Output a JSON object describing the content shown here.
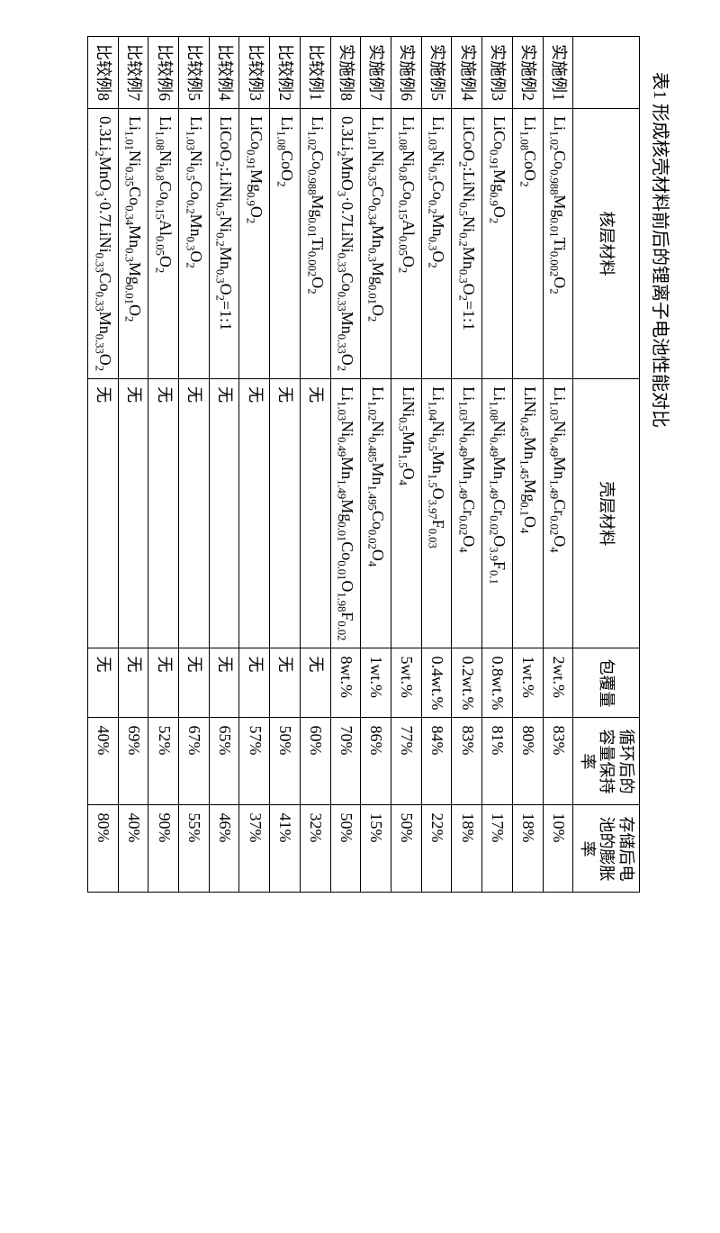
{
  "caption": "表1  形成核壳材料前后的锂离子电池性能对比",
  "headers": {
    "row_label": "",
    "core": "核层材料",
    "shell": "壳层材料",
    "coat": "包覆量",
    "retention": "循环后的容量保持率",
    "expansion": "存储后电池的膨胀率"
  },
  "rows": [
    {
      "label": "实施例1",
      "core_html": "Li<sub>1.02</sub>Co<sub>0.988</sub>Mg<sub>0.01</sub>Ti<sub>0.002</sub>O<sub>2</sub>",
      "shell_html": "Li<sub>1.03</sub>Ni<sub>0.49</sub>Mn<sub>1.49</sub>Cr<sub>0.02</sub>O<sub>4</sub>",
      "coat": "2wt.%",
      "ret": "83%",
      "exp": "10%"
    },
    {
      "label": "实施例2",
      "core_html": "Li<sub>1.08</sub>CoO<sub>2</sub>",
      "shell_html": "LiNi<sub>0.45</sub>Mn<sub>1.45</sub>Mg<sub>0.1</sub>O<sub>4</sub>",
      "coat": "1wt.%",
      "ret": "80%",
      "exp": "18%"
    },
    {
      "label": "实施例3",
      "core_html": "LiCo<sub>0.91</sub>Mg<sub>0.9</sub>O<sub>2</sub>",
      "shell_html": "Li<sub>1.08</sub>Ni<sub>0.49</sub>Mn<sub>1.49</sub>Cr<sub>0.02</sub>O<sub>3.9</sub>F<sub>0.1</sub>",
      "coat": "0.8wt.%",
      "ret": "81%",
      "exp": "17%"
    },
    {
      "label": "实施例4",
      "core_html": "LiCoO<sub>2</sub>:LiNi<sub>0.5</sub>Ni<sub>0.2</sub>Mn<sub>0.3</sub>O<sub>2</sub>=1:1",
      "shell_html": "Li<sub>1.03</sub>Ni<sub>0.49</sub>Mn<sub>1.49</sub>Cr<sub>0.02</sub>O<sub>4</sub>",
      "coat": "0.2wt.%",
      "ret": "83%",
      "exp": "18%"
    },
    {
      "label": "实施例5",
      "core_html": "Li<sub>1.03</sub>Ni<sub>0.5</sub>Co<sub>0.2</sub>Mn<sub>0.3</sub>O<sub>2</sub>",
      "shell_html": "Li<sub>1.04</sub>Ni<sub>0.5</sub>Mn<sub>1.5</sub>O<sub>3.97</sub>F<sub>0.03</sub>",
      "coat": "0.4wt.%",
      "ret": "84%",
      "exp": "22%"
    },
    {
      "label": "实施例6",
      "core_html": "Li<sub>1.08</sub>Ni<sub>0.8</sub>Co<sub>0.15</sub>Al<sub>0.05</sub>O<sub>2</sub>",
      "shell_html": "LiNi<sub>0.5</sub>Mn<sub>1.5</sub>O<sub>4</sub>",
      "coat": "5wt.%",
      "ret": "77%",
      "exp": "50%"
    },
    {
      "label": "实施例7",
      "core_html": "Li<sub>1.01</sub>Ni<sub>0.35</sub>Co<sub>0.34</sub>Mn<sub>0.3</sub>Mg<sub>0.01</sub>O<sub>2</sub>",
      "shell_html": "Li<sub>1.02</sub>Ni<sub>0.485</sub>Mn<sub>1.495</sub>Co<sub>0.02</sub>O<sub>4</sub>",
      "coat": "1wt.%",
      "ret": "86%",
      "exp": "15%"
    },
    {
      "label": "实施例8",
      "core_html": "0.3Li<sub>2</sub>MnO<sub>3</sub>·0.7LiNi<sub>0.33</sub>Co<sub>0.33</sub>Mn<sub>0.33</sub>O<sub>2</sub>",
      "shell_html": "Li<sub>1.03</sub>Ni<sub>0.49</sub>Mn<sub>1.49</sub>Mg<sub>0.01</sub>Co<sub>0.01</sub>O<sub>1.98</sub>F<sub>0.02</sub>",
      "coat": "8wt.%",
      "ret": "70%",
      "exp": "50%"
    },
    {
      "label": "比较例1",
      "core_html": "Li<sub>1.02</sub>Co<sub>0.988</sub>Mg<sub>0.01</sub>Ti<sub>0.002</sub>O<sub>2</sub>",
      "shell_html": "无",
      "coat": "无",
      "ret": "60%",
      "exp": "32%"
    },
    {
      "label": "比较例2",
      "core_html": "Li<sub>1.08</sub>CoO<sub>2</sub>",
      "shell_html": "无",
      "coat": "无",
      "ret": "50%",
      "exp": "41%"
    },
    {
      "label": "比较例3",
      "core_html": "LiCo<sub>0.91</sub>Mg<sub>0.9</sub>O<sub>2</sub>",
      "shell_html": "无",
      "coat": "无",
      "ret": "57%",
      "exp": "37%"
    },
    {
      "label": "比较例4",
      "core_html": "LiCoO<sub>2</sub>:LiNi<sub>0.5</sub>Ni<sub>0.2</sub>Mn<sub>0.3</sub>O<sub>2</sub>=1:1",
      "shell_html": "无",
      "coat": "无",
      "ret": "65%",
      "exp": "46%"
    },
    {
      "label": "比较例5",
      "core_html": "Li<sub>1.03</sub>Ni<sub>0.5</sub>Co<sub>0.2</sub>Mn<sub>0.3</sub>O<sub>2</sub>",
      "shell_html": "无",
      "coat": "无",
      "ret": "67%",
      "exp": "55%"
    },
    {
      "label": "比较例6",
      "core_html": "Li<sub>1.08</sub>Ni<sub>0.8</sub>Co<sub>0.15</sub>Al<sub>0.05</sub>O<sub>2</sub>",
      "shell_html": "无",
      "coat": "无",
      "ret": "52%",
      "exp": "90%"
    },
    {
      "label": "比较例7",
      "core_html": "Li<sub>1.01</sub>Ni<sub>0.35</sub>Co<sub>0.34</sub>Mn<sub>0.3</sub>Mg<sub>0.01</sub>O<sub>2</sub>",
      "shell_html": "无",
      "coat": "无",
      "ret": "69%",
      "exp": "40%"
    },
    {
      "label": "比较例8",
      "core_html": "0.3Li<sub>2</sub>MnO<sub>3</sub>·0.7LiNi<sub>0.33</sub>Co<sub>0.33</sub>Mn<sub>0.33</sub>O<sub>2</sub>",
      "shell_html": "无",
      "coat": "无",
      "ret": "40%",
      "exp": "80%"
    }
  ]
}
